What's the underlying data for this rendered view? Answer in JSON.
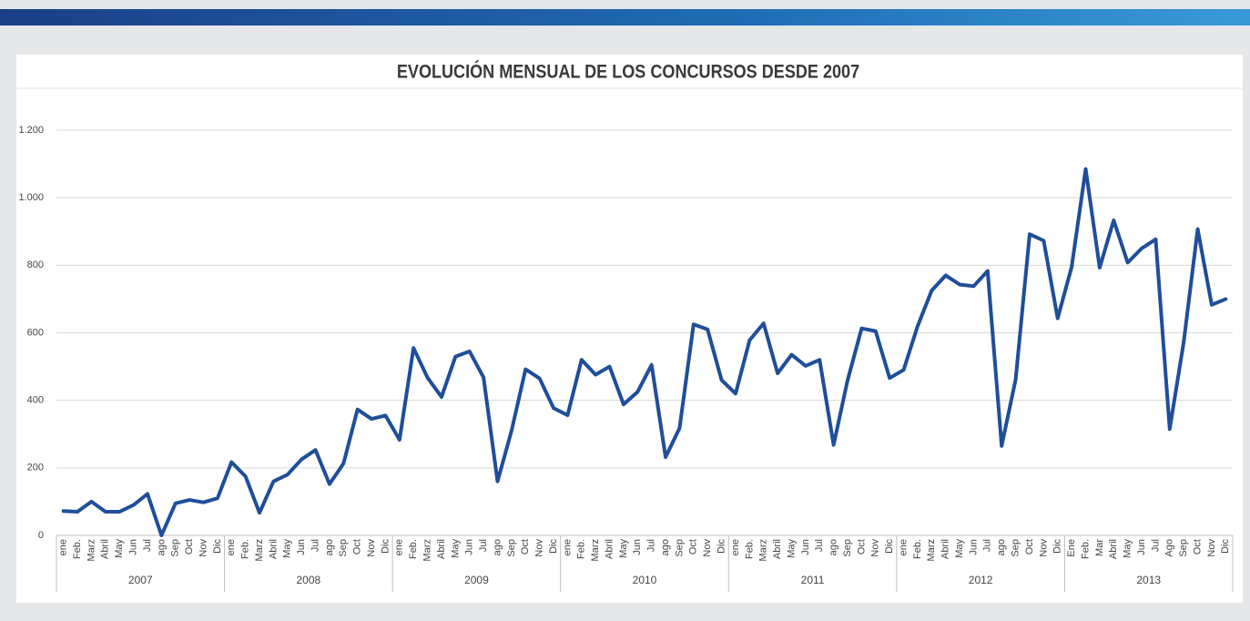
{
  "chart_data": {
    "type": "line",
    "title": "EVOLUCIÓN MENSUAL DE LOS CONCURSOS DESDE 2007",
    "categories": [
      "ene",
      "Feb.",
      "Marz",
      "Abril",
      "May",
      "Jun",
      "Jul",
      "ago",
      "Sep",
      "Oct",
      "Nov",
      "Dic",
      "ene",
      "Feb.",
      "Marz",
      "Abril",
      "May",
      "Jun",
      "Jul",
      "ago",
      "Sep",
      "Oct",
      "Nov",
      "Dic",
      "ene",
      "Feb.",
      "Marz",
      "Abril",
      "May",
      "Jun",
      "Jul",
      "ago",
      "Sep",
      "Oct",
      "Nov",
      "Dic",
      "ene",
      "Feb.",
      "Marz",
      "Abril",
      "May",
      "Jun",
      "Jul",
      "ago",
      "Sep",
      "Oct",
      "Nov",
      "Dic",
      "ene",
      "Feb.",
      "Marz",
      "Abril",
      "May",
      "Jun",
      "Jul",
      "ago",
      "Sep",
      "Oct",
      "Nov",
      "Dic",
      "ene",
      "Feb.",
      "Marz",
      "Abril",
      "May",
      "Jun",
      "Jul",
      "ago",
      "Sep",
      "Oct",
      "Nov",
      "Dic",
      "Ene",
      "Feb.",
      "Mar",
      "Abril",
      "May",
      "Jun",
      "Jul",
      "Ago",
      "Sep",
      "Oct",
      "Nov",
      "Dic"
    ],
    "years": [
      "2007",
      "2008",
      "2009",
      "2010",
      "2011",
      "2012",
      "2013"
    ],
    "values": [
      72,
      70,
      100,
      70,
      70,
      90,
      123,
      0,
      95,
      105,
      98,
      110,
      217,
      175,
      67,
      160,
      180,
      225,
      253,
      152,
      213,
      373,
      345,
      355,
      283,
      555,
      467,
      410,
      530,
      545,
      468,
      160,
      310,
      492,
      465,
      377,
      356,
      520,
      476,
      500,
      388,
      425,
      505,
      232,
      318,
      625,
      610,
      460,
      420,
      578,
      628,
      480,
      535,
      502,
      520,
      268,
      460,
      613,
      605,
      466,
      490,
      620,
      725,
      770,
      743,
      738,
      783,
      265,
      462,
      892,
      873,
      643,
      795,
      1085,
      793,
      933,
      808,
      850,
      877,
      315,
      572,
      907,
      683,
      700
    ],
    "color": "#1f4e9a",
    "ylim": [
      0,
      1200
    ],
    "yticks": [
      0,
      200,
      400,
      600,
      800,
      {
        "value": 1000,
        "label": "1.000"
      },
      {
        "value": 1200,
        "label": "1.200"
      }
    ],
    "grid": true
  }
}
